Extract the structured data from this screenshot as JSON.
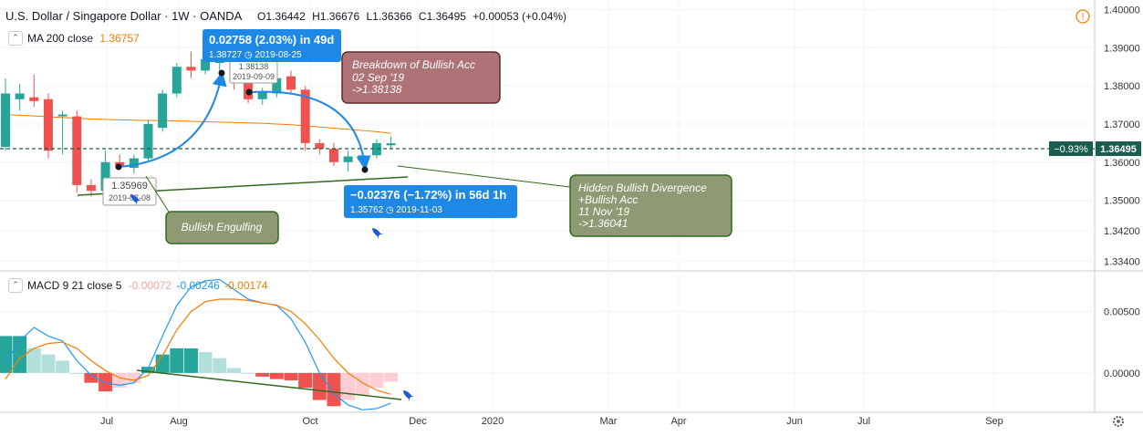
{
  "header": {
    "symbol": "U.S. Dollar / Singapore Dollar · 1W · OANDA",
    "open": "O1.36442",
    "high": "H1.36676",
    "low": "L1.36366",
    "close": "C1.36495",
    "change": "+0.00053 (+0.04%)",
    "info_icon": "!"
  },
  "ma_legend": {
    "label": "MA 200 close",
    "value": "1.36757"
  },
  "macd_legend": {
    "label": "MACD 9 21 close 5",
    "hist": "-0.00072",
    "macd": "-0.00246",
    "signal": "-0.00174"
  },
  "colors": {
    "bull": "#26a69a",
    "bear": "#ef5350",
    "ma": "#f57c00",
    "macd": "#2196f3",
    "signal": "#f57c00",
    "hist_up_strong": "#26a69a",
    "hist_up_weak": "#b2dfdb",
    "hist_down_strong": "#ef5350",
    "hist_down_weak": "#ffcdd2",
    "callout_blue": "#1e88e5",
    "callout_red": "#a05a5e",
    "callout_green": "#8d9a74",
    "trendline": "#33691e"
  },
  "price_axis": [
    "1.40000",
    "1.39000",
    "1.38000",
    "1.37000",
    "1.36000",
    "1.35000",
    "1.34200",
    "1.33400"
  ],
  "macd_axis": [
    "0.00500",
    "0.00000"
  ],
  "time_axis": [
    "Jul",
    "Aug",
    "Oct",
    "Dec",
    "2020",
    "Mar",
    "Apr",
    "Jun",
    "Jul",
    "Sep"
  ],
  "last_price": "1.36495",
  "last_change_pct": "−0.93%",
  "annotations": {
    "measure_up": {
      "title": "0.02758 (2.03%) in 49d",
      "detail": "1.38727 ◷ 2019-08-25"
    },
    "label_high": {
      "price": "1.38138",
      "date": "2019-09-09"
    },
    "label_low": {
      "price": "1.35969",
      "date": "2019-07-08"
    },
    "measure_down": {
      "title": "−0.02376 (−1.72%) in 56d 1h",
      "detail": "1.35762 ◷ 2019-11-03"
    },
    "breakdown": {
      "line1": "Breakdown of Bullish Acc",
      "line2": "02 Sep '19",
      "line3": "->1.38138"
    },
    "bullish_engulfing": "Bullish Engulfing",
    "hidden_div": {
      "line1": "Hidden Bullish Divergence",
      "line2": "+Bullish Acc",
      "line3": "11 Nov '19",
      "line4": "->1.36041"
    }
  },
  "chart_data": {
    "type": "candlestick",
    "title": "U.S. Dollar / Singapore Dollar · 1W · OANDA",
    "ylim": [
      1.3315,
      1.4025
    ],
    "candles": [
      {
        "o": 1.364,
        "h": 1.382,
        "l": 1.363,
        "c": 1.378
      },
      {
        "o": 1.3765,
        "h": 1.3805,
        "l": 1.3735,
        "c": 1.378
      },
      {
        "o": 1.377,
        "h": 1.383,
        "l": 1.3745,
        "c": 1.376
      },
      {
        "o": 1.3765,
        "h": 1.378,
        "l": 1.361,
        "c": 1.363
      },
      {
        "o": 1.372,
        "h": 1.3735,
        "l": 1.362,
        "c": 1.3725
      },
      {
        "o": 1.372,
        "h": 1.3735,
        "l": 1.352,
        "c": 1.354
      },
      {
        "o": 1.354,
        "h": 1.3555,
        "l": 1.351,
        "c": 1.3525
      },
      {
        "o": 1.3525,
        "h": 1.363,
        "l": 1.3515,
        "c": 1.36
      },
      {
        "o": 1.36,
        "h": 1.362,
        "l": 1.358,
        "c": 1.359
      },
      {
        "o": 1.3585,
        "h": 1.362,
        "l": 1.357,
        "c": 1.361
      },
      {
        "o": 1.361,
        "h": 1.371,
        "l": 1.36,
        "c": 1.37
      },
      {
        "o": 1.369,
        "h": 1.379,
        "l": 1.368,
        "c": 1.378
      },
      {
        "o": 1.378,
        "h": 1.386,
        "l": 1.377,
        "c": 1.385
      },
      {
        "o": 1.385,
        "h": 1.389,
        "l": 1.382,
        "c": 1.384
      },
      {
        "o": 1.384,
        "h": 1.389,
        "l": 1.383,
        "c": 1.387
      },
      {
        "o": 1.386,
        "h": 1.389,
        "l": 1.384,
        "c": 1.387
      },
      {
        "o": 1.387,
        "h": 1.388,
        "l": 1.379,
        "c": 1.381
      },
      {
        "o": 1.381,
        "h": 1.383,
        "l": 1.3755,
        "c": 1.3765
      },
      {
        "o": 1.3765,
        "h": 1.3795,
        "l": 1.375,
        "c": 1.3785
      },
      {
        "o": 1.378,
        "h": 1.385,
        "l": 1.377,
        "c": 1.382
      },
      {
        "o": 1.3825,
        "h": 1.384,
        "l": 1.378,
        "c": 1.379
      },
      {
        "o": 1.379,
        "h": 1.38,
        "l": 1.363,
        "c": 1.365
      },
      {
        "o": 1.365,
        "h": 1.366,
        "l": 1.362,
        "c": 1.3635
      },
      {
        "o": 1.3635,
        "h": 1.365,
        "l": 1.359,
        "c": 1.36
      },
      {
        "o": 1.36,
        "h": 1.363,
        "l": 1.3576,
        "c": 1.3615
      },
      {
        "o": 1.3605,
        "h": 1.3625,
        "l": 1.3595,
        "c": 1.3618
      },
      {
        "o": 1.3618,
        "h": 1.366,
        "l": 1.361,
        "c": 1.365
      },
      {
        "o": 1.36442,
        "h": 1.36676,
        "l": 1.36366,
        "c": 1.36495
      }
    ],
    "ma200": [
      1.3725,
      1.3723,
      1.3721,
      1.3719,
      1.3717,
      1.3715,
      1.3713,
      1.3712,
      1.3711,
      1.371,
      1.3709,
      1.3709,
      1.3708,
      1.3707,
      1.3706,
      1.3705,
      1.3704,
      1.3703,
      1.3702,
      1.37,
      1.3698,
      1.3695,
      1.3692,
      1.3689,
      1.3686,
      1.3683,
      1.368,
      1.36757
    ],
    "macd_ylim": [
      -0.0032,
      0.0083
    ],
    "macd": [
      0.0008,
      0.0026,
      0.0037,
      0.003,
      0.0026,
      0.001,
      -0.0002,
      -0.0008,
      -0.001,
      -0.0008,
      0.0004,
      0.003,
      0.0055,
      0.007,
      0.0075,
      0.0076,
      0.0068,
      0.006,
      0.0057,
      0.0055,
      0.0044,
      0.0025,
      0.0,
      -0.0017,
      -0.0026,
      -0.003,
      -0.0029,
      -0.00246
    ],
    "signal": [
      -0.0005,
      0.0012,
      0.002,
      0.0024,
      0.0025,
      0.002,
      0.001,
      0.0002,
      -0.0004,
      -0.0006,
      -0.0002,
      0.0014,
      0.0035,
      0.005,
      0.0058,
      0.006,
      0.006,
      0.0059,
      0.0057,
      0.0055,
      0.005,
      0.004,
      0.0027,
      0.0012,
      0.0,
      -0.0008,
      -0.0014,
      -0.00174
    ],
    "histogram": [
      0.003,
      0.003,
      0.002,
      0.0015,
      0.001,
      0.0,
      -0.0008,
      -0.0015,
      -0.0012,
      -0.0008,
      0.0005,
      0.0015,
      0.002,
      0.002,
      0.0017,
      0.0012,
      0.0004,
      0.0,
      -0.0003,
      -0.0005,
      -0.0006,
      -0.0012,
      -0.0022,
      -0.0027,
      -0.0022,
      -0.0018,
      -0.0012,
      -0.00072
    ]
  }
}
